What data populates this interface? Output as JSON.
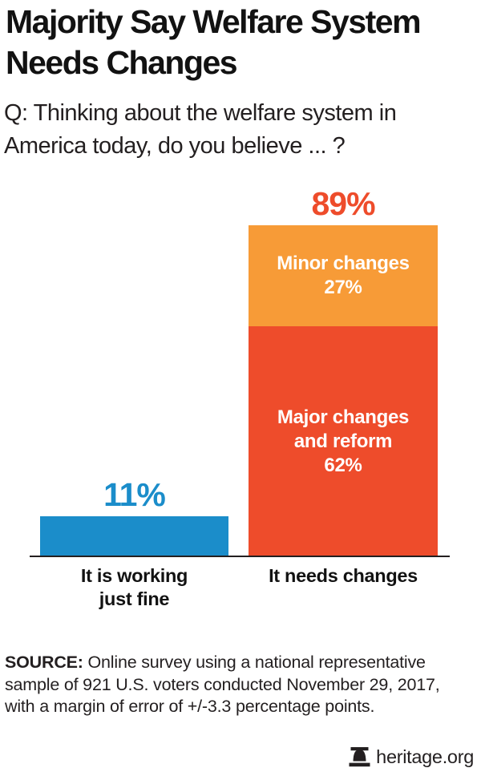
{
  "title": "Majority Say Welfare System Needs Changes",
  "question": "Q: Thinking about the welfare system in America today, do you believe ... ?",
  "colors": {
    "blue": "#1b8dca",
    "orange": "#f79b37",
    "red": "#ee4c2b",
    "text_dark": "#231f20",
    "title_black": "#121212",
    "bar_label_white": "#ffffff"
  },
  "chart_data": {
    "type": "bar",
    "stacked": true,
    "unit": "%",
    "grid": false,
    "legend": "none",
    "categories": [
      "It is working just fine",
      "It needs changes"
    ],
    "bars": [
      {
        "category": "It is working just fine",
        "category_lines": [
          "It is working",
          "just fine"
        ],
        "total": 11,
        "total_label": "11%",
        "total_label_color": "#1b8dca",
        "segments": [
          {
            "name": "It is working just fine",
            "value": 11,
            "color": "#1b8dca",
            "label_lines": []
          }
        ]
      },
      {
        "category": "It needs changes",
        "category_lines": [
          "It needs changes"
        ],
        "total": 89,
        "total_label": "89%",
        "total_label_color": "#ee4c2b",
        "segments": [
          {
            "name": "Minor changes",
            "value": 27,
            "value_label": "27%",
            "color": "#f79b37",
            "label_lines": [
              "Minor changes",
              "27%"
            ]
          },
          {
            "name": "Major changes and reform",
            "value": 62,
            "value_label": "62%",
            "color": "#ee4c2b",
            "label_lines": [
              "Major changes",
              "and reform",
              "62%"
            ]
          }
        ]
      }
    ]
  },
  "source": {
    "label": "SOURCE:",
    "text": "Online survey using a national representative sample of 921 U.S. voters conducted November 29, 2017, with a margin of error of +/-3.3 percentage points."
  },
  "footer": {
    "icon": "liberty-bell-icon",
    "brand": "heritage.org"
  }
}
